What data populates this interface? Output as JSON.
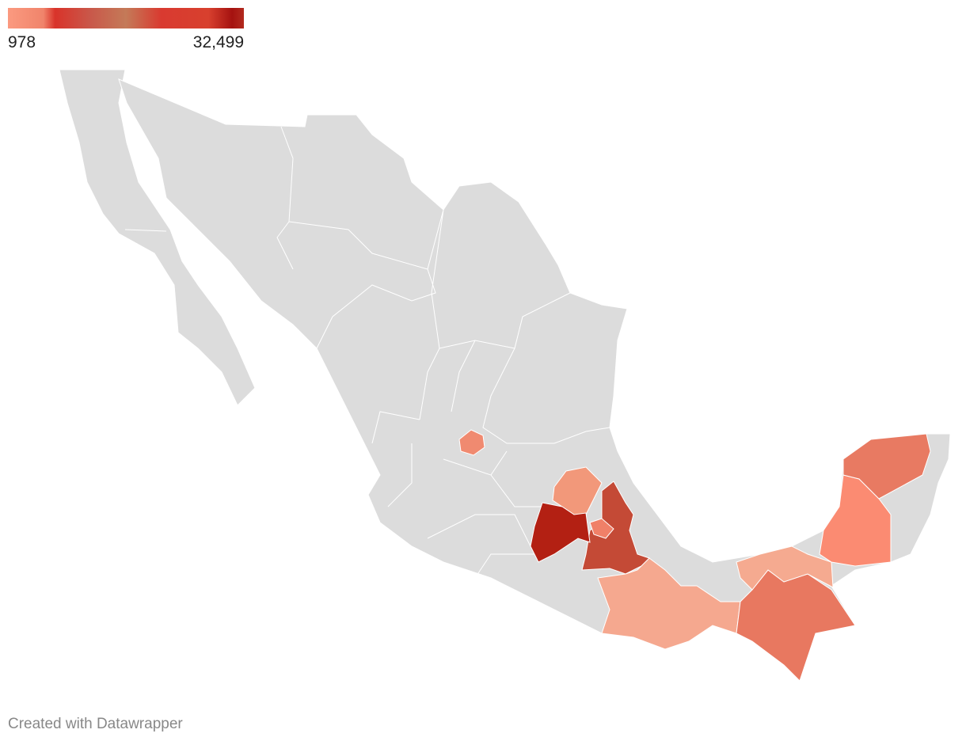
{
  "legend": {
    "ticks": [
      978,
      {
        "value": 32499,
        "label": "32,499"
      }
    ]
  },
  "footer": "Created with Datawrapper"
}
